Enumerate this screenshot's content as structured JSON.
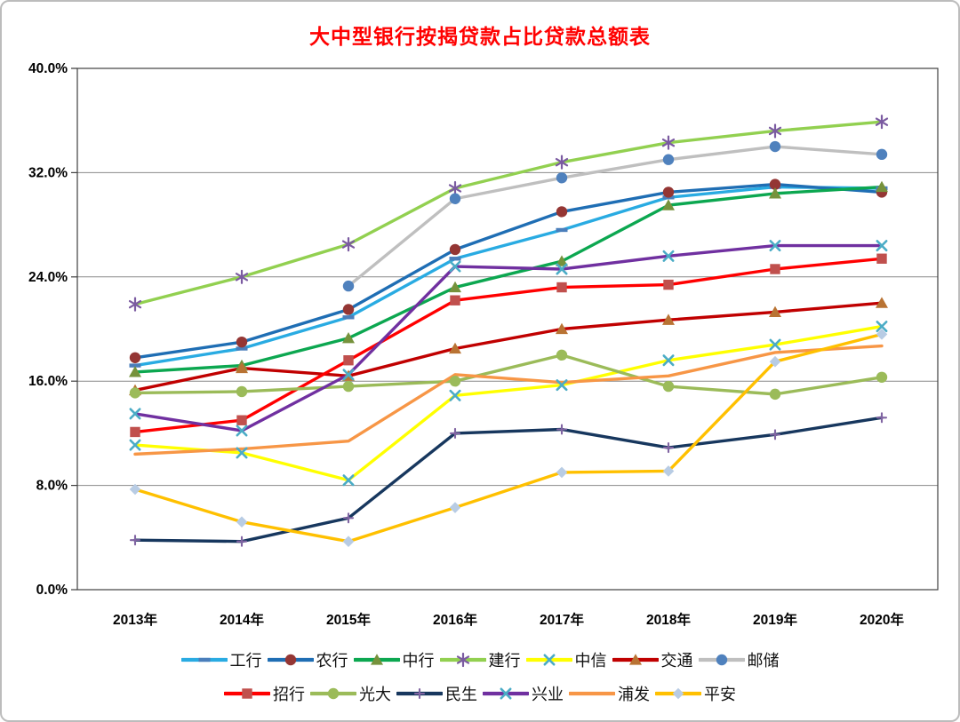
{
  "chart_data": {
    "type": "line",
    "title": "大中型银行按揭贷款占比贷款总额表",
    "title_color": "#ff0000",
    "xlabel": "",
    "ylabel": "",
    "x_categories": [
      "2013年",
      "2014年",
      "2015年",
      "2016年",
      "2017年",
      "2018年",
      "2019年",
      "2020年"
    ],
    "ylim": [
      0,
      40
    ],
    "y_unit": "%",
    "y_ticks": [
      {
        "v": 0,
        "label": "0.0%"
      },
      {
        "v": 8,
        "label": "8.0%"
      },
      {
        "v": 16,
        "label": "16.0%"
      },
      {
        "v": 24,
        "label": "24.0%"
      },
      {
        "v": 32,
        "label": "32.0%"
      },
      {
        "v": 40,
        "label": "40.0%"
      }
    ],
    "grid": true,
    "legend_position": "bottom",
    "legend_rows": [
      [
        "工行",
        "农行",
        "中行",
        "建行",
        "中信",
        "交通",
        "邮储"
      ],
      [
        "招行",
        "光大",
        "民生",
        "兴业",
        "浦发",
        "平安"
      ]
    ],
    "series": [
      {
        "name": "工行",
        "line_color": "#29abe2",
        "marker": "dash",
        "marker_color": "#4a7ebb",
        "values": [
          17.2,
          18.5,
          20.9,
          25.4,
          27.6,
          30.1,
          30.9,
          30.8
        ]
      },
      {
        "name": "农行",
        "line_color": "#1f6eb4",
        "marker": "circle",
        "marker_color": "#943634",
        "values": [
          17.8,
          19.0,
          21.5,
          26.1,
          29.0,
          30.5,
          31.1,
          30.5
        ]
      },
      {
        "name": "中行",
        "line_color": "#0ca750",
        "marker": "triangle",
        "marker_color": "#76923c",
        "values": [
          16.7,
          17.2,
          19.3,
          23.2,
          25.2,
          29.5,
          30.4,
          30.9
        ]
      },
      {
        "name": "建行",
        "line_color": "#92d050",
        "marker": "star",
        "marker_color": "#7b5ba1",
        "values": [
          21.9,
          24.0,
          26.5,
          30.8,
          32.8,
          34.3,
          35.2,
          35.9
        ]
      },
      {
        "name": "中信",
        "line_color": "#ffff00",
        "marker": "x",
        "marker_color": "#4bacc6",
        "values": [
          11.1,
          10.5,
          8.4,
          14.9,
          15.7,
          17.6,
          18.8,
          20.2
        ]
      },
      {
        "name": "交通",
        "line_color": "#c00000",
        "marker": "triangle",
        "marker_color": "#b97333",
        "values": [
          15.3,
          17.0,
          16.4,
          18.5,
          20.0,
          20.7,
          21.3,
          22.0
        ]
      },
      {
        "name": "邮储",
        "line_color": "#bfbfbf",
        "marker": "circle",
        "marker_color": "#4f81bd",
        "values": [
          null,
          null,
          23.3,
          30.0,
          31.6,
          33.0,
          34.0,
          33.4
        ]
      },
      {
        "name": "招行",
        "line_color": "#ff0000",
        "marker": "square",
        "marker_color": "#c0504d",
        "values": [
          12.1,
          13.0,
          17.6,
          22.2,
          23.2,
          23.4,
          24.6,
          25.4
        ]
      },
      {
        "name": "光大",
        "line_color": "#9bbb59",
        "marker": "circle",
        "marker_color": "#9bbb59",
        "values": [
          15.1,
          15.2,
          15.6,
          16.0,
          18.0,
          15.6,
          15.0,
          16.3
        ]
      },
      {
        "name": "民生",
        "line_color": "#17375e",
        "marker": "plus",
        "marker_color": "#8064a2",
        "values": [
          3.8,
          3.7,
          5.5,
          12.0,
          12.3,
          10.9,
          11.9,
          13.2
        ]
      },
      {
        "name": "兴业",
        "line_color": "#7030a0",
        "marker": "x",
        "marker_color": "#4bacc6",
        "values": [
          13.5,
          12.2,
          16.5,
          24.8,
          24.6,
          25.6,
          26.4,
          26.4
        ]
      },
      {
        "name": "浦发",
        "line_color": "#f79646",
        "marker": "none",
        "marker_color": "#f79646",
        "values": [
          10.4,
          10.8,
          11.4,
          16.5,
          15.9,
          16.4,
          18.2,
          18.7
        ]
      },
      {
        "name": "平安",
        "line_color": "#ffc000",
        "marker": "diamond",
        "marker_color": "#b8cce4",
        "values": [
          7.7,
          5.2,
          3.7,
          6.3,
          9.0,
          9.1,
          17.5,
          19.6
        ]
      }
    ],
    "axis_colors": {
      "plot_border": "#3f3f3f",
      "gridline": "#898989",
      "tick_label": "#000000"
    }
  }
}
